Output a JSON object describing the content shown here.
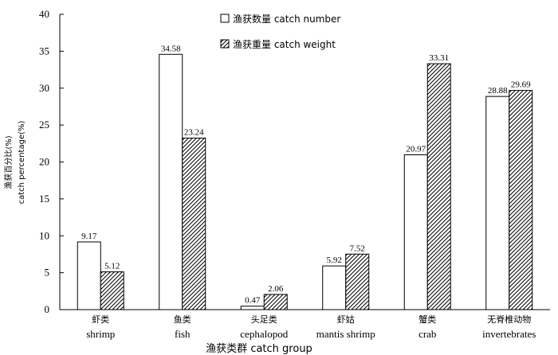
{
  "chart_data": {
    "type": "bar",
    "categories": [
      {
        "cn": "虾类",
        "en": "shrimp"
      },
      {
        "cn": "鱼类",
        "en": "fish"
      },
      {
        "cn": "头足类",
        "en": "cephalopod"
      },
      {
        "cn": "虾姑",
        "en": "mantis shrimp"
      },
      {
        "cn": "蟹类",
        "en": "crab"
      },
      {
        "cn": "无脊椎动物",
        "en": "invertebrates"
      }
    ],
    "series": [
      {
        "name": "渔获数量 catch number",
        "pattern": "white",
        "values": [
          9.17,
          34.58,
          0.47,
          5.92,
          20.97,
          28.88
        ],
        "labels": [
          "9.17",
          "34.58",
          "0.47",
          "5.92",
          "20.97",
          "28.88"
        ]
      },
      {
        "name": "渔获重量 catch weight",
        "pattern": "hatch",
        "values": [
          5.12,
          23.24,
          2.06,
          7.52,
          33.31,
          29.69
        ],
        "labels": [
          "5.12",
          "23.24",
          "2.06",
          "7.52",
          "33.31",
          "29.69"
        ]
      }
    ],
    "ylabel_cn": "渔获百分比(%)",
    "ylabel_en": "catch percentage(%)",
    "xlabel": "渔获类群 catch group",
    "ylim": [
      0,
      40
    ],
    "yticks": [
      "0",
      "5",
      "10",
      "15",
      "20",
      "25",
      "30",
      "35",
      "40"
    ],
    "legend_position": "top-center",
    "grid": false
  }
}
